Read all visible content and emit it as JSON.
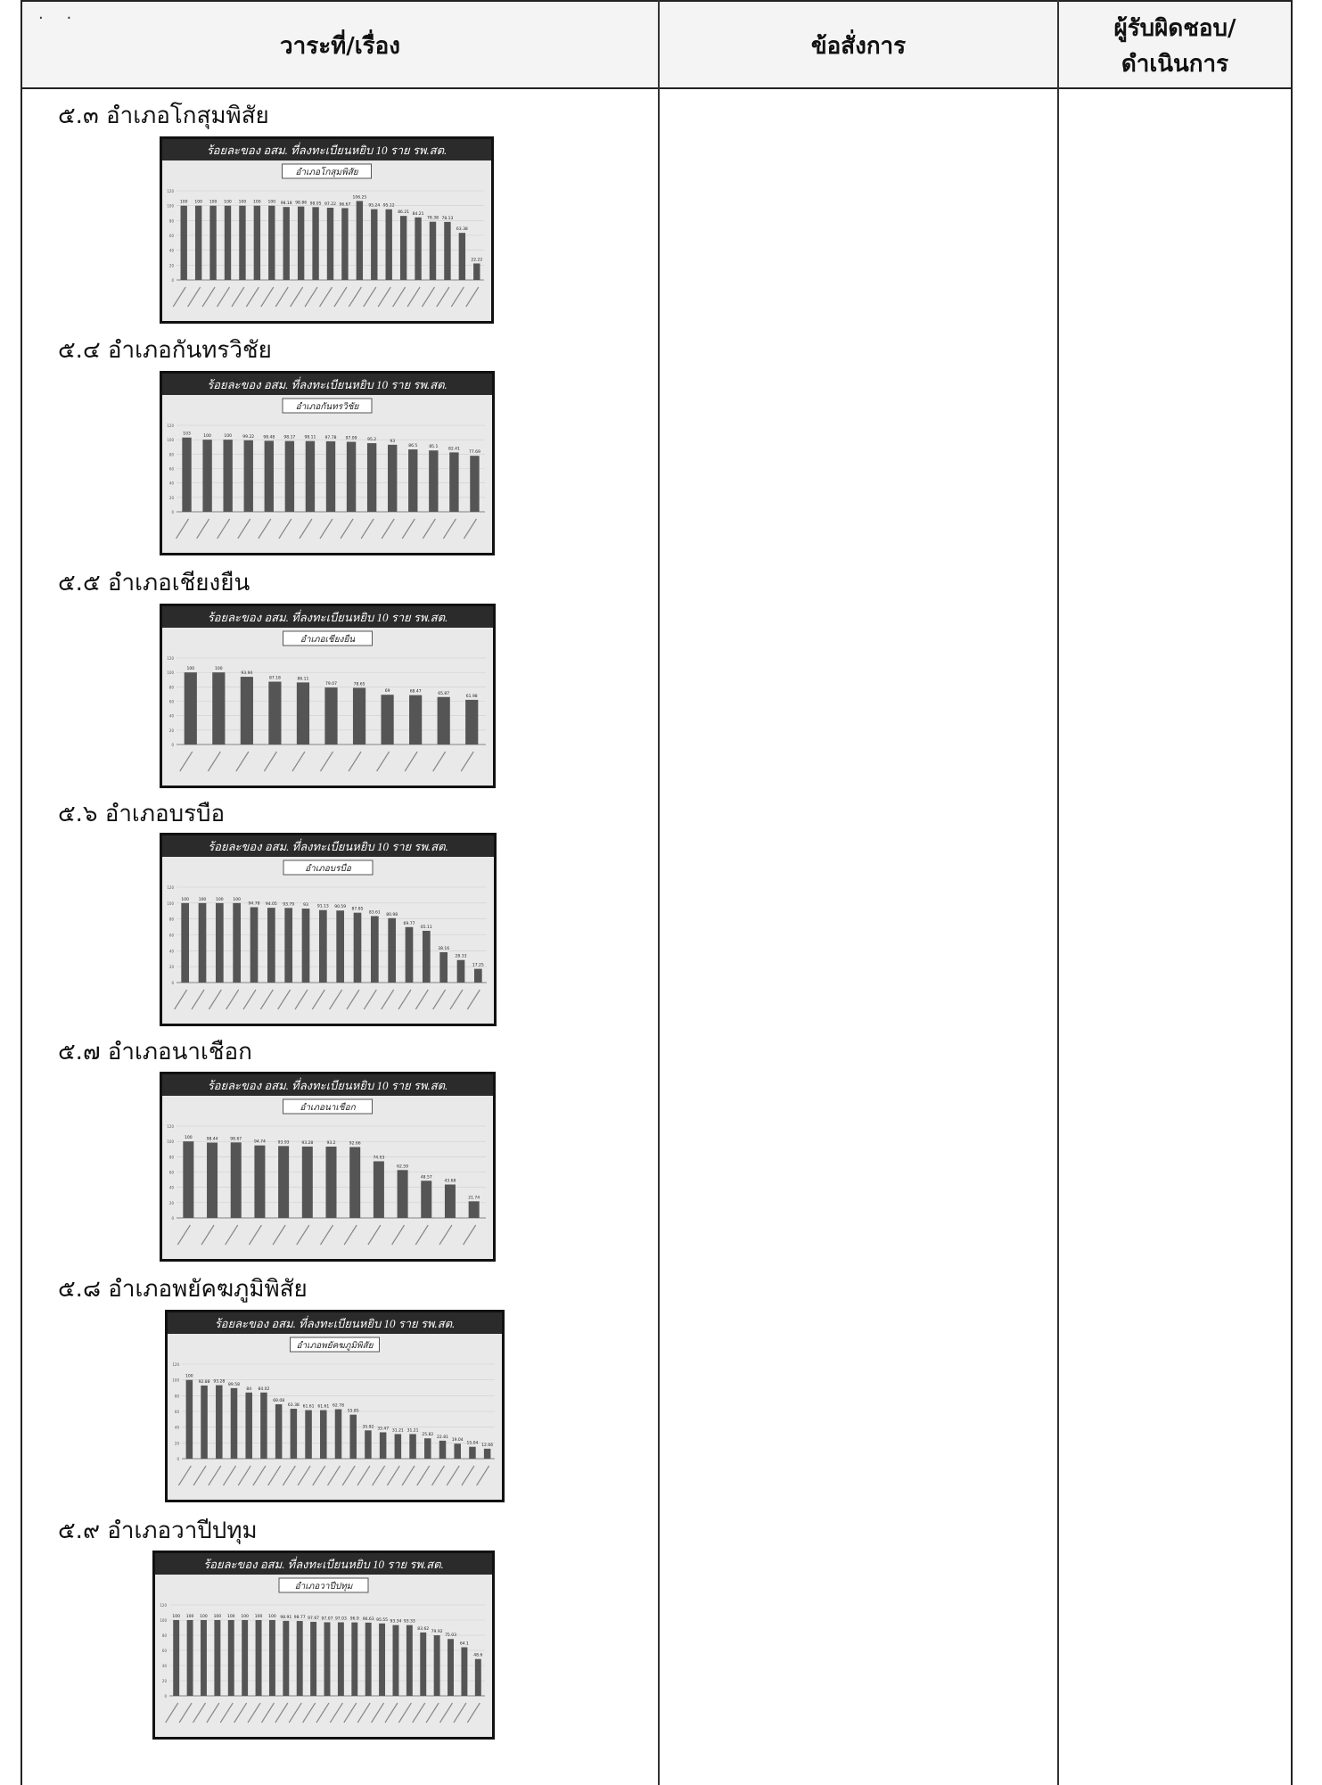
{
  "header": {
    "dots": "· ·",
    "col1": "วาระที่/เรื่อง",
    "col2": "ข้อสั่งการ",
    "col3_line1": "ผู้รับผิดชอบ/",
    "col3_line2": "ดำเนินการ"
  },
  "sections": [
    {
      "title": "๕.๓ อำเภอโกสุมพิสัย"
    },
    {
      "title": "๕.๔ อำเภอกันทรวิชัย"
    },
    {
      "title": "๕.๕ อำเภอเชียงยืน"
    },
    {
      "title": "๕.๖ อำเภอบรบือ"
    },
    {
      "title": "๕.๗ อำเภอนาเชือก"
    },
    {
      "title": "๕.๘ อำเภอพยัคฆภูมิพิสัย"
    },
    {
      "title": "๕.๙ อำเภอวาปีปทุม"
    }
  ],
  "chart_data": [
    {
      "type": "bar",
      "title": "ร้อยละของ อสม. ที่ลงทะเบียนหยิบ 10 ราย รพ.สต.",
      "subtitle": "อำเภอโกสุมพิสัย",
      "ylim": [
        0,
        120
      ],
      "values": [
        100,
        100,
        100,
        100,
        100,
        100,
        100,
        98.18,
        98.86,
        98.05,
        97.22,
        96.67,
        106.25,
        95.24,
        95.12,
        86.21,
        84.21,
        78.38,
        78.13,
        63.38,
        22.22
      ]
    },
    {
      "type": "bar",
      "title": "ร้อยละของ อสม. ที่ลงทะเบียนหยิบ 10 ราย รพ.สต.",
      "subtitle": "อำเภอกันทรวิชัย",
      "ylim": [
        0,
        120
      ],
      "values": [
        103,
        100,
        100,
        99.22,
        98.48,
        98.17,
        98.11,
        97.78,
        97.09,
        95.2,
        93,
        86.5,
        85.1,
        82.41,
        77.69
      ]
    },
    {
      "type": "bar",
      "title": "ร้อยละของ อสม. ที่ลงทะเบียนหยิบ 10 ราย รพ.สต.",
      "subtitle": "อำเภอเชียงยืน",
      "ylim": [
        0,
        120
      ],
      "values": [
        100,
        100,
        93.94,
        87.18,
        86.11,
        79.07,
        78.65,
        69,
        68.47,
        65.87,
        61.98
      ]
    },
    {
      "type": "bar",
      "title": "ร้อยละของ อสม. ที่ลงทะเบียนหยิบ 10 ราย รพ.สต.",
      "subtitle": "อำเภอบรบือ",
      "ylim": [
        0,
        120
      ],
      "values": [
        100,
        100,
        100,
        100,
        94.78,
        94.05,
        93.79,
        93,
        91.13,
        90.59,
        87.85,
        83.61,
        80.98,
        69.77,
        65.11,
        38.16,
        28.33,
        17.25
      ]
    },
    {
      "type": "bar",
      "title": "ร้อยละของ อสม. ที่ลงทะเบียนหยิบ 10 ราย รพ.สต.",
      "subtitle": "อำเภอนาเชือก",
      "ylim": [
        0,
        120
      ],
      "values": [
        100,
        98.44,
        98.67,
        94.74,
        93.93,
        93.28,
        93.2,
        92.66,
        74.03,
        62.59,
        48.57,
        43.68,
        21.74
      ]
    },
    {
      "type": "bar",
      "title": "ร้อยละของ อสม. ที่ลงทะเบียนหยิบ 10 ราย รพ.สต.",
      "subtitle": "อำเภอพยัคฆภูมิพิสัย",
      "ylim": [
        0,
        120
      ],
      "values": [
        100,
        92.88,
        93.28,
        89.58,
        84,
        84.02,
        69.08,
        63.38,
        61.61,
        61.61,
        62.78,
        55.85,
        35.92,
        33.47,
        31.21,
        31.21,
        25.82,
        22.81,
        19.04,
        15.04,
        12.66
      ]
    },
    {
      "type": "bar",
      "title": "ร้อยละของ อสม. ที่ลงทะเบียนหยิบ 10 ราย รพ.สต.",
      "subtitle": "อำเภอวาปีปทุม",
      "ylim": [
        0,
        120
      ],
      "values": [
        100,
        100,
        100,
        100,
        100,
        100,
        100,
        100,
        98.91,
        98.77,
        97.67,
        97.07,
        97.03,
        96.9,
        96.63,
        95.55,
        93.34,
        93.33,
        83.62,
        79.92,
        75.03,
        64.1,
        48.6
      ]
    }
  ]
}
